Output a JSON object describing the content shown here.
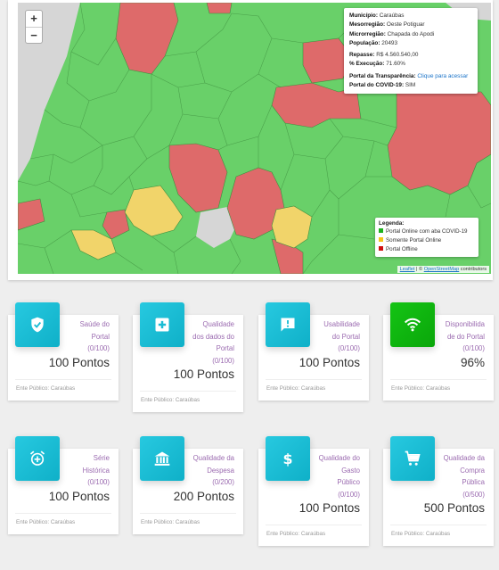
{
  "map": {
    "zoom_in": "+",
    "zoom_out": "−",
    "info": {
      "municipio_label": "Município:",
      "municipio": "Caraúbas",
      "mesorregiao_label": "Mesorregião:",
      "mesorregiao": "Oeste Potiguar",
      "microrregiao_label": "Microrregião:",
      "microrregiao": "Chapada do Apodi",
      "populacao_label": "População:",
      "populacao": "20493",
      "repasse_label": "Repasse:",
      "repasse": "R$ 4.560.540,00",
      "execucao_label": "% Execução:",
      "execucao": "71.60%",
      "portal_transparencia_label": "Portal da Transparência:",
      "portal_transparencia_link": "Clique para acessar",
      "portal_covid_label": "Portal do COVID-19:",
      "portal_covid": "SIM"
    },
    "legend": {
      "title": "Legenda:",
      "items": [
        {
          "label": "Portal Online com aba COVID-19",
          "color": "#1eb11e"
        },
        {
          "label": "Somente Portal Online",
          "color": "#f5c518"
        },
        {
          "label": "Portal Offline",
          "color": "#d01010"
        }
      ]
    },
    "attribution": {
      "leaflet": "Leaflet",
      "sep": " | © ",
      "osm": "OpenStreetMap",
      "suffix": " contributors"
    },
    "colors": {
      "online_covid": "#69d069",
      "only_online": "#f1d46a",
      "offline": "#de6a6a",
      "background": "#d6d6d6"
    }
  },
  "cards": [
    {
      "icon": "shield-check-icon",
      "color": "cyan",
      "label_lines": [
        "Saúde do",
        "Portal",
        "(0/100)"
      ],
      "value": "100 Pontos",
      "footer": "Ente Público: Caraúbas"
    },
    {
      "icon": "medical-plus-icon",
      "color": "cyan",
      "label_lines": [
        "Qualidade",
        "dos dados do",
        "Portal",
        "(0/100)"
      ],
      "value": "100 Pontos",
      "footer": "Ente Público: Caraúbas"
    },
    {
      "icon": "alert-message-icon",
      "color": "cyan",
      "label_lines": [
        "Usabilidade",
        "do Portal",
        "(0/100)"
      ],
      "value": "100 Pontos",
      "footer": "Ente Público: Caraúbas"
    },
    {
      "icon": "wifi-icon",
      "color": "green",
      "label_lines": [
        "Disponibilida",
        "de do Portal",
        "(0/100)"
      ],
      "value": "96%",
      "footer": "Ente Público: Caraúbas"
    },
    {
      "icon": "alarm-clock-icon",
      "color": "cyan",
      "label_lines": [
        "Série",
        "Histórica",
        "(0/100)"
      ],
      "value": "100 Pontos",
      "footer": "Ente Público: Caraúbas"
    },
    {
      "icon": "bank-icon",
      "color": "cyan",
      "label_lines": [
        "Qualidade da",
        "Despesa",
        "(0/200)"
      ],
      "value": "200 Pontos",
      "footer": "Ente Público: Caraúbas"
    },
    {
      "icon": "dollar-icon",
      "color": "cyan",
      "label_lines": [
        "Qualidade do",
        "Gasto",
        "Público",
        "(0/100)"
      ],
      "value": "100 Pontos",
      "footer": "Ente Público: Caraúbas"
    },
    {
      "icon": "shopping-cart-icon",
      "color": "cyan",
      "label_lines": [
        "Qualidade da",
        "Compra",
        "Pública",
        "(0/500)"
      ],
      "value": "500 Pontos",
      "footer": "Ente Público: Caraúbas"
    }
  ]
}
